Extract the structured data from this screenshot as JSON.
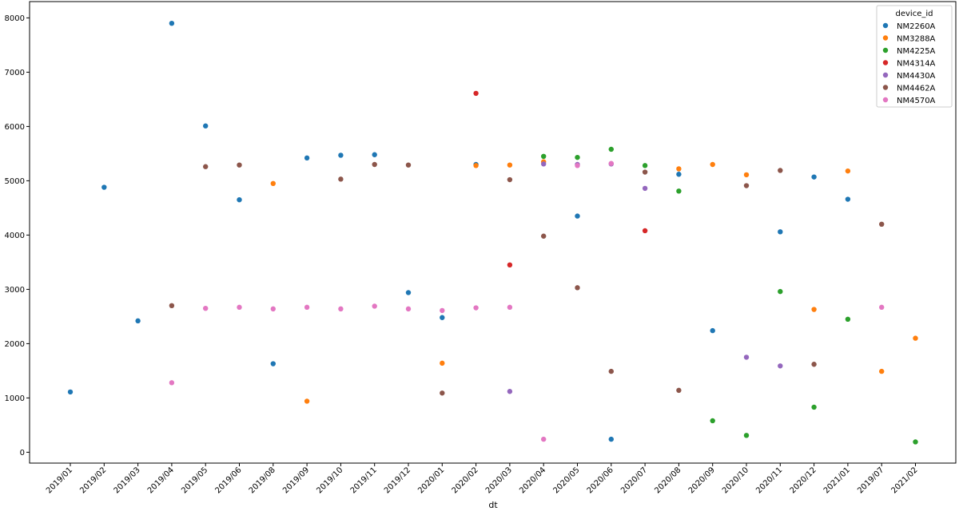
{
  "chart_data": {
    "type": "scatter",
    "xlabel": "dt",
    "ylabel": "",
    "ylim": [
      -200,
      8300
    ],
    "y_ticks": [
      "0",
      "1000",
      "2000",
      "3000",
      "4000",
      "5000",
      "6000",
      "7000",
      "8000"
    ],
    "categories": [
      "2019/01",
      "2019/02",
      "2019/03",
      "2019/04",
      "2019/05",
      "2019/06",
      "2019/08",
      "2019/09",
      "2019/10",
      "2019/11",
      "2019/12",
      "2020/01",
      "2020/02",
      "2020/03",
      "2020/04",
      "2020/05",
      "2020/06",
      "2020/07",
      "2020/08",
      "2020/09",
      "2020/10",
      "2020/11",
      "2020/12",
      "2021/01",
      "2019/07",
      "2021/02"
    ],
    "grid": false,
    "legend": {
      "title": "device_id",
      "position": "top-right"
    },
    "series": [
      {
        "name": "NM2260A",
        "color": "#1f77b4",
        "points": [
          [
            "2019/01",
            1110
          ],
          [
            "2019/02",
            4880
          ],
          [
            "2019/03",
            2420
          ],
          [
            "2019/04",
            7900
          ],
          [
            "2019/05",
            6010
          ],
          [
            "2019/06",
            4650
          ],
          [
            "2019/08",
            1630
          ],
          [
            "2019/09",
            5420
          ],
          [
            "2019/10",
            5470
          ],
          [
            "2019/11",
            5480
          ],
          [
            "2019/12",
            2940
          ],
          [
            "2020/01",
            2480
          ],
          [
            "2020/02",
            5300
          ],
          [
            "2020/05",
            4350
          ],
          [
            "2020/06",
            240
          ],
          [
            "2020/08",
            5120
          ],
          [
            "2020/09",
            2240
          ],
          [
            "2020/11",
            4060
          ],
          [
            "2020/12",
            5070
          ],
          [
            "2021/01",
            4660
          ]
        ]
      },
      {
        "name": "NM3288A",
        "color": "#ff7f0e",
        "points": [
          [
            "2019/08",
            4950
          ],
          [
            "2019/09",
            940
          ],
          [
            "2020/01",
            1640
          ],
          [
            "2020/02",
            5280
          ],
          [
            "2020/03",
            5290
          ],
          [
            "2020/04",
            5350
          ],
          [
            "2020/08",
            5220
          ],
          [
            "2020/09",
            5300
          ],
          [
            "2020/10",
            5110
          ],
          [
            "2020/12",
            2630
          ],
          [
            "2021/01",
            5180
          ],
          [
            "2019/07",
            1490
          ],
          [
            "2021/02",
            2100
          ]
        ]
      },
      {
        "name": "NM4225A",
        "color": "#2ca02c",
        "points": [
          [
            "2020/04",
            5450
          ],
          [
            "2020/05",
            5430
          ],
          [
            "2020/06",
            5580
          ],
          [
            "2020/07",
            5280
          ],
          [
            "2020/08",
            4810
          ],
          [
            "2020/09",
            580
          ],
          [
            "2020/10",
            310
          ],
          [
            "2020/11",
            2960
          ],
          [
            "2020/12",
            830
          ],
          [
            "2021/01",
            2450
          ],
          [
            "2021/02",
            190
          ]
        ]
      },
      {
        "name": "NM4314A",
        "color": "#d62728",
        "points": [
          [
            "2020/02",
            6610
          ],
          [
            "2020/03",
            3450
          ],
          [
            "2020/07",
            4080
          ]
        ]
      },
      {
        "name": "NM4430A",
        "color": "#9467bd",
        "points": [
          [
            "2020/03",
            1120
          ],
          [
            "2020/04",
            5310
          ],
          [
            "2020/05",
            5300
          ],
          [
            "2020/06",
            5310
          ],
          [
            "2020/07",
            4860
          ],
          [
            "2020/10",
            1750
          ],
          [
            "2020/11",
            1590
          ]
        ]
      },
      {
        "name": "NM4462A",
        "color": "#8c564b",
        "points": [
          [
            "2019/04",
            2700
          ],
          [
            "2019/05",
            5260
          ],
          [
            "2019/06",
            5290
          ],
          [
            "2019/10",
            5030
          ],
          [
            "2019/11",
            5300
          ],
          [
            "2019/12",
            5290
          ],
          [
            "2020/01",
            1090
          ],
          [
            "2020/03",
            5020
          ],
          [
            "2020/04",
            3980
          ],
          [
            "2020/05",
            3030
          ],
          [
            "2020/06",
            1490
          ],
          [
            "2020/07",
            5160
          ],
          [
            "2020/08",
            1140
          ],
          [
            "2020/10",
            4910
          ],
          [
            "2020/11",
            5190
          ],
          [
            "2020/12",
            1620
          ],
          [
            "2019/07",
            4200
          ]
        ]
      },
      {
        "name": "NM4570A",
        "color": "#e377c2",
        "points": [
          [
            "2019/04",
            1280
          ],
          [
            "2019/05",
            2650
          ],
          [
            "2019/06",
            2670
          ],
          [
            "2019/08",
            2640
          ],
          [
            "2019/09",
            2670
          ],
          [
            "2019/10",
            2640
          ],
          [
            "2019/11",
            2690
          ],
          [
            "2019/12",
            2640
          ],
          [
            "2020/01",
            2610
          ],
          [
            "2020/02",
            2660
          ],
          [
            "2020/03",
            2670
          ],
          [
            "2020/04",
            240
          ],
          [
            "2020/05",
            5280
          ],
          [
            "2020/06",
            5320
          ],
          [
            "2019/07",
            2670
          ]
        ]
      }
    ]
  }
}
